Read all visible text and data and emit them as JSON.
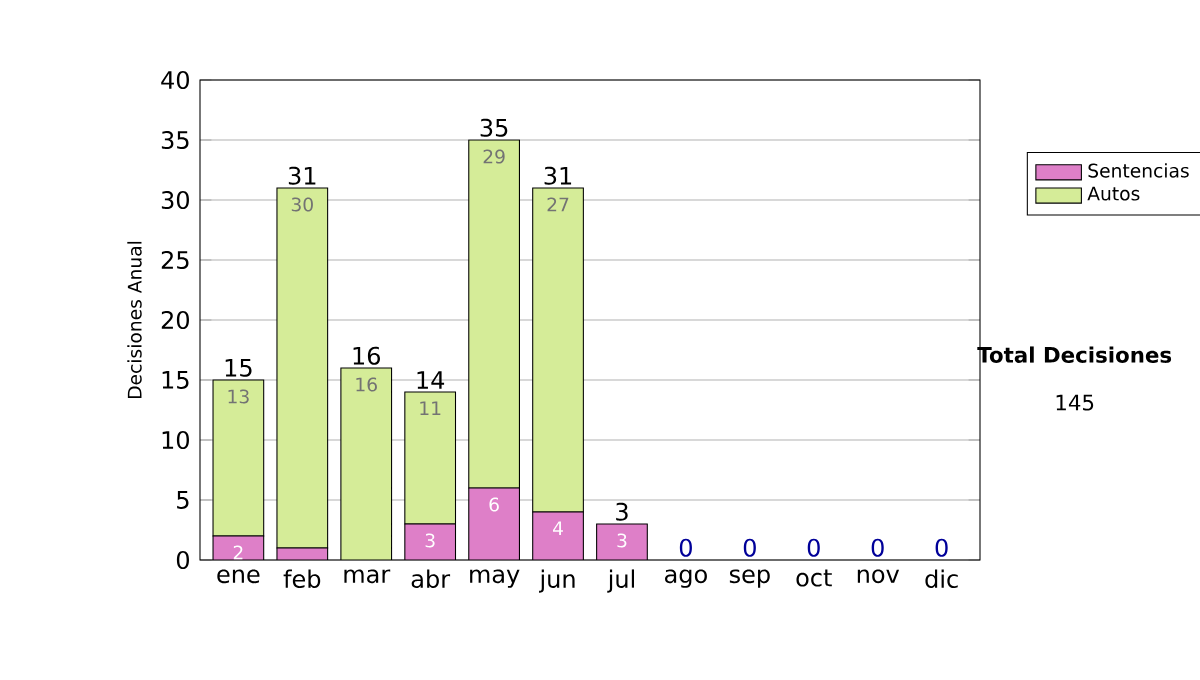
{
  "chart_data": {
    "type": "bar",
    "stacked": true,
    "ylabel": "Decisiones Anual",
    "categories": [
      "ene",
      "feb",
      "mar",
      "abr",
      "may",
      "jun",
      "jul",
      "ago",
      "sep",
      "oct",
      "nov",
      "dic"
    ],
    "series": [
      {
        "name": "Sentencias",
        "color": "#de7fc8",
        "values": [
          2,
          1,
          0,
          3,
          6,
          4,
          3,
          0,
          0,
          0,
          0,
          0
        ],
        "value_labels": [
          "2",
          null,
          null,
          "3",
          "6",
          "4",
          "3",
          null,
          null,
          null,
          null,
          null
        ]
      },
      {
        "name": "Autos",
        "color": "#d5ec98",
        "values": [
          13,
          30,
          16,
          11,
          29,
          27,
          0,
          0,
          0,
          0,
          0,
          0
        ],
        "value_labels": [
          "13",
          "30",
          "16",
          "11",
          "29",
          "27",
          null,
          null,
          null,
          null,
          null,
          null
        ]
      }
    ],
    "totals": [
      "15",
      "31",
      "16",
      "14",
      "35",
      "31",
      "3",
      "0",
      "0",
      "0",
      "0",
      "0"
    ],
    "ylim": [
      0,
      40
    ],
    "yticks": [
      0,
      5,
      10,
      15,
      20,
      25,
      30,
      35,
      40
    ],
    "grid": "y",
    "legend": "right",
    "annotations": [
      "Total Decisiones",
      "145"
    ]
  }
}
